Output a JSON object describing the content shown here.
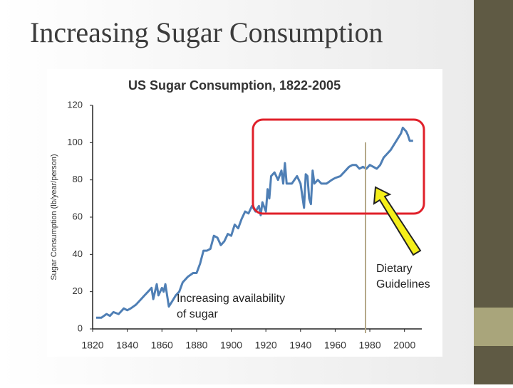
{
  "slide_title": "Increasing Sugar Consumption",
  "chart_data": {
    "type": "line",
    "title": "US Sugar Consumption, 1822-2005",
    "y_label": "Sugar Consumption (lb/year/person)",
    "annotations": [
      "Increasing availability of sugar",
      "Dietary Guidelines"
    ],
    "color": "#4f7fb5",
    "x": [
      1822,
      1825,
      1828,
      1830,
      1832,
      1835,
      1838,
      1840,
      1842,
      1845,
      1848,
      1850,
      1852,
      1854,
      1855,
      1857,
      1858,
      1860,
      1861,
      1862,
      1864,
      1866,
      1868,
      1870,
      1872,
      1875,
      1878,
      1880,
      1882,
      1884,
      1886,
      1888,
      1890,
      1892,
      1894,
      1896,
      1898,
      1900,
      1902,
      1904,
      1906,
      1908,
      1910,
      1912,
      1914,
      1916,
      1917,
      1918,
      1920,
      1921,
      1922,
      1923,
      1925,
      1927,
      1929,
      1930,
      1931,
      1932,
      1935,
      1938,
      1940,
      1942,
      1943,
      1944,
      1945,
      1946,
      1947,
      1948,
      1950,
      1952,
      1955,
      1958,
      1960,
      1963,
      1965,
      1968,
      1970,
      1972,
      1974,
      1976,
      1978,
      1980,
      1982,
      1984,
      1986,
      1988,
      1990,
      1992,
      1994,
      1996,
      1998,
      1999,
      2000,
      2001,
      2002,
      2003,
      2005
    ],
    "values": [
      6,
      6,
      8,
      7,
      9,
      8,
      11,
      10,
      11,
      13,
      16,
      18,
      20,
      22,
      16,
      24,
      18,
      22,
      20,
      24,
      12,
      15,
      18,
      20,
      25,
      28,
      30,
      30,
      35,
      42,
      42,
      43,
      50,
      49,
      45,
      47,
      51,
      50,
      56,
      54,
      59,
      63,
      62,
      66,
      63,
      66,
      61,
      68,
      63,
      75,
      70,
      82,
      84,
      80,
      85,
      78,
      89,
      78,
      78,
      82,
      78,
      65,
      83,
      82,
      70,
      67,
      85,
      78,
      80,
      78,
      78,
      80,
      81,
      82,
      84,
      87,
      88,
      88,
      86,
      87,
      86,
      88,
      87,
      86,
      88,
      92,
      94,
      96,
      99,
      102,
      105,
      108,
      107,
      106,
      104,
      101,
      101
    ],
    "xlim": [
      1820,
      2010
    ],
    "ylim": [
      0,
      120
    ],
    "xticks": [
      1820,
      1840,
      1860,
      1880,
      1900,
      1920,
      1940,
      1960,
      1980,
      2000
    ],
    "yticks": [
      0,
      20,
      40,
      60,
      80,
      100,
      120
    ]
  }
}
